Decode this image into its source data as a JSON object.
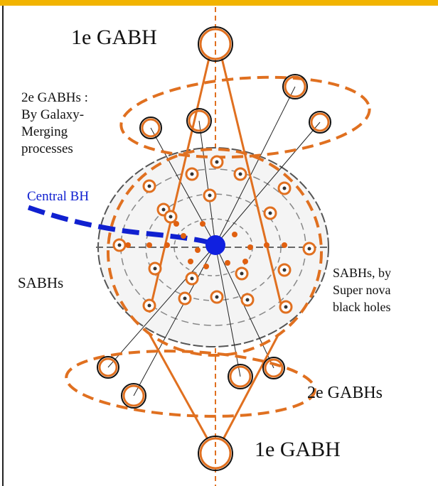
{
  "labels": {
    "top_gabh": "1e GABH",
    "second_gabhs_top": [
      "2e GABHs :",
      "By Galaxy-",
      "Merging",
      "processes"
    ],
    "central_bh": "Central BH",
    "sabhs_left": "SABHs",
    "sabhs_right": [
      "SABHs, by",
      "Super nova",
      "black holes"
    ],
    "second_gabhs_bottom": "2e GABHs",
    "bottom_gabh": "1e GABH"
  }
}
